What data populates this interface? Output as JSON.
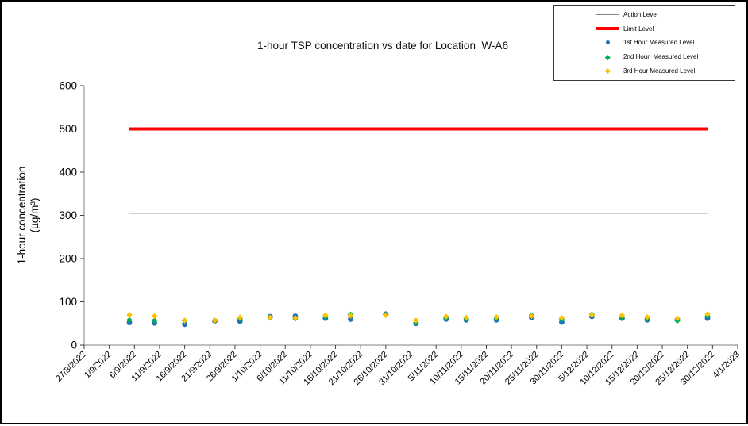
{
  "chart_data": {
    "type": "scatter",
    "title": "1-hour TSP concentration vs date for Location  W-A6",
    "xlabel": "",
    "ylabel": "1-hour concentration (µg/m³)",
    "ylabel_lines": [
      "1-hour concentration",
      "(µg/m³)"
    ],
    "ylim": [
      0,
      600
    ],
    "y_ticks": [
      0,
      100,
      200,
      300,
      400,
      500,
      600
    ],
    "x_tick_interval_days": 5,
    "x_range_days": 130,
    "x_tick_labels": [
      "27/8/2022",
      "1/9/2022",
      "6/9/2022",
      "11/9/2022",
      "16/9/2022",
      "21/9/2022",
      "26/9/2022",
      "1/10/2022",
      "6/10/2022",
      "11/10/2022",
      "16/10/2022",
      "21/10/2022",
      "26/10/2022",
      "31/10/2022",
      "5/11/2022",
      "10/11/2022",
      "15/11/2022",
      "20/11/2022",
      "25/11/2022",
      "30/11/2022",
      "5/12/2022",
      "10/12/2022",
      "15/12/2022",
      "20/12/2022",
      "25/12/2022",
      "30/12/2022",
      "4/1/2023"
    ],
    "reference_lines": [
      {
        "name": "Action Level",
        "value": 305,
        "color": "#808080",
        "thickness": 1.2
      },
      {
        "name": "Limit Level",
        "value": 500,
        "color": "#FF0000",
        "thickness": 4
      }
    ],
    "measurement_day_offsets": [
      9,
      14,
      20,
      26,
      31,
      37,
      42,
      48,
      53,
      60,
      66,
      72,
      76,
      82,
      89,
      95,
      101,
      107,
      112,
      118,
      124
    ],
    "measurement_dates_estimated": [
      "5/9/2022",
      "10/9/2022",
      "16/9/2022",
      "22/9/2022",
      "27/9/2022",
      "3/10/2022",
      "8/10/2022",
      "14/10/2022",
      "19/10/2022",
      "26/10/2022",
      "1/11/2022",
      "7/11/2022",
      "11/11/2022",
      "17/11/2022",
      "24/11/2022",
      "30/11/2022",
      "6/12/2022",
      "12/12/2022",
      "17/12/2022",
      "23/12/2022",
      "29/12/2022"
    ],
    "series": [
      {
        "name": "1st Hour Measured Level",
        "marker": "circle",
        "color": "#2272B5",
        "values": [
          52,
          51,
          48,
          56,
          55,
          66,
          67,
          62,
          60,
          72,
          50,
          60,
          58,
          58,
          64,
          53,
          66,
          62,
          58,
          60,
          62
        ]
      },
      {
        "name": "2nd Hour Measured Level",
        "marker": "diamond",
        "color": "#00B050",
        "values": [
          58,
          57,
          56,
          57,
          61,
          63,
          61,
          65,
          71,
          70,
          52,
          63,
          61,
          62,
          69,
          59,
          71,
          64,
          61,
          56,
          67
        ]
      },
      {
        "name": "3rd Hour Measured Level",
        "marker": "diamond",
        "color": "#FFC000",
        "values": [
          70,
          67,
          57,
          57,
          64,
          64,
          63,
          69,
          68,
          69,
          57,
          66,
          64,
          65,
          67,
          63,
          70,
          69,
          65,
          62,
          72
        ]
      }
    ],
    "grid": "off",
    "legend_position": "top-right"
  },
  "legend": {
    "items": [
      {
        "label": "Action Level",
        "marker": "line-thin",
        "color": "#808080"
      },
      {
        "label": "Limit Level",
        "marker": "line-thick",
        "color": "#FF0000"
      },
      {
        "label": "1st Hour Measured Level",
        "marker": "circle",
        "color": "#2272B5"
      },
      {
        "label": "2nd Hour  Measured Level",
        "marker": "diamond",
        "color": "#00B050"
      },
      {
        "label": "3rd Hour Measured Level",
        "marker": "diamond",
        "color": "#FFC000"
      }
    ]
  },
  "axis_style": {
    "axis_color": "#808080",
    "tick_color": "#404040",
    "text_color": "#000000"
  }
}
